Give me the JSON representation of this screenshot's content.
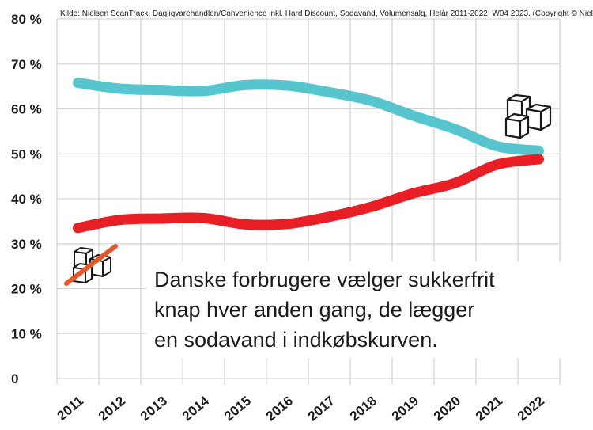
{
  "chart_data": {
    "type": "line",
    "source": "Kilde: Nielsen ScanTrack, Dagligvarehandlen/Convenience inkl. Hard Discount, Sodavand, Volumensalg, Helår 2011-2022, W04 2023. (Copyright © Nielsen.)",
    "headline_lines": [
      "Danske forbrugere vælger sukkerfrit",
      "knap hver anden gang, de lægger",
      "en sodavand i indkøbskurven."
    ],
    "categories": [
      "2011",
      "2012",
      "2013",
      "2014",
      "2015",
      "2016",
      "2017",
      "2018",
      "2019",
      "2020",
      "2021",
      "2022"
    ],
    "ylim": [
      0,
      80
    ],
    "y_ticks": [
      0,
      10,
      20,
      30,
      40,
      50,
      60,
      70,
      80
    ],
    "y_tick_labels": [
      "0",
      "10 %",
      "20 %",
      "30 %",
      "40 %",
      "50 %",
      "60 %",
      "70 %",
      "80 %"
    ],
    "grid": true,
    "series": [
      {
        "values": [
          65.8,
          64.5,
          64.2,
          64.0,
          65.3,
          65.2,
          63.7,
          61.8,
          58.5,
          55.5,
          51.7,
          50.7
        ],
        "color": "#56c5cd",
        "marker_icon": "sugar-cubes-icon"
      },
      {
        "values": [
          33.5,
          35.3,
          35.6,
          35.7,
          34.3,
          34.4,
          36.0,
          38.2,
          41.2,
          43.5,
          47.6,
          48.8
        ],
        "color": "#e81e25",
        "marker_icon": "sugar-cubes-crossed-out-icon"
      }
    ],
    "colors": {
      "strike": "#e8572a",
      "text": "#1a1a1a",
      "grid": "#d6d6d6"
    }
  }
}
